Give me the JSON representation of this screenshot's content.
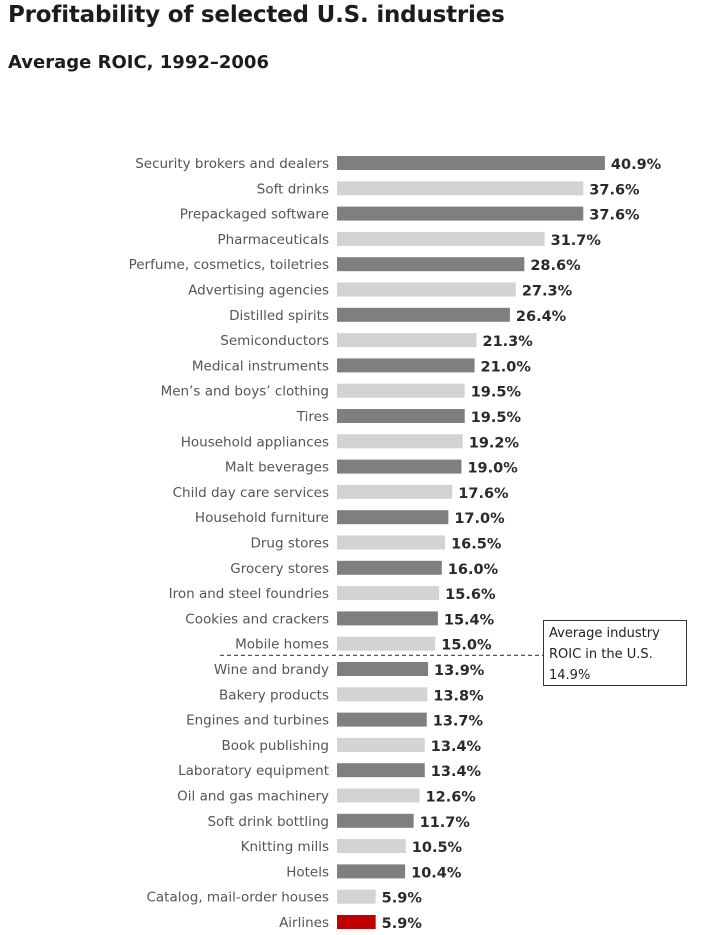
{
  "header": {
    "title": "Profitability of selected U.S. industries",
    "subtitle": "Average ROIC, 1992–2006"
  },
  "average_note": {
    "line1": "Average industry",
    "line2": "ROIC in the U.S.",
    "line3": "14.9%"
  },
  "colors": {
    "dark_bar": "#7f7f7f",
    "light_bar": "#d3d3d3",
    "highlight_bar": "#c00000"
  },
  "chart_data": {
    "type": "bar",
    "orientation": "horizontal",
    "title": "Profitability of selected U.S. industries",
    "subtitle": "Average ROIC, 1992–2006",
    "unit": "%",
    "average_line": 14.9,
    "categories": [
      "Security brokers and dealers",
      "Soft drinks",
      "Prepackaged software",
      "Pharmaceuticals",
      "Perfume, cosmetics, toiletries",
      "Advertising agencies",
      "Distilled spirits",
      "Semiconductors",
      "Medical instruments",
      "Men’s and boys’ clothing",
      "Tires",
      "Household appliances",
      "Malt beverages",
      "Child day care services",
      "Household furniture",
      "Drug stores",
      "Grocery stores",
      "Iron and steel foundries",
      "Cookies and crackers",
      "Mobile homes",
      "Wine and brandy",
      "Bakery products",
      "Engines and turbines",
      "Book publishing",
      "Laboratory equipment",
      "Oil and gas machinery",
      "Soft drink bottling",
      "Knitting mills",
      "Hotels",
      "Catalog, mail-order houses",
      "Airlines"
    ],
    "values": [
      40.9,
      37.6,
      37.6,
      31.7,
      28.6,
      27.3,
      26.4,
      21.3,
      21.0,
      19.5,
      19.5,
      19.2,
      19.0,
      17.6,
      17.0,
      16.5,
      16.0,
      15.6,
      15.4,
      15.0,
      13.9,
      13.8,
      13.7,
      13.4,
      13.4,
      12.6,
      11.7,
      10.5,
      10.4,
      5.9,
      5.9
    ],
    "value_labels": [
      "40.9%",
      "37.6%",
      "37.6%",
      "31.7%",
      "28.6%",
      "27.3%",
      "26.4%",
      "21.3%",
      "21.0%",
      "19.5%",
      "19.5%",
      "19.2%",
      "19.0%",
      "17.6%",
      "17.0%",
      "16.5%",
      "16.0%",
      "15.6%",
      "15.4%",
      "15.0%",
      "13.9%",
      "13.8%",
      "13.7%",
      "13.4%",
      "13.4%",
      "12.6%",
      "11.7%",
      "10.5%",
      "10.4%",
      "5.9%",
      "5.9%"
    ],
    "bar_colors": [
      "dark",
      "light",
      "dark",
      "light",
      "dark",
      "light",
      "dark",
      "light",
      "dark",
      "light",
      "dark",
      "light",
      "dark",
      "light",
      "dark",
      "light",
      "dark",
      "light",
      "dark",
      "light",
      "dark",
      "light",
      "dark",
      "light",
      "dark",
      "light",
      "dark",
      "light",
      "dark",
      "light",
      "highlight"
    ],
    "grid": false,
    "legend": "none"
  }
}
